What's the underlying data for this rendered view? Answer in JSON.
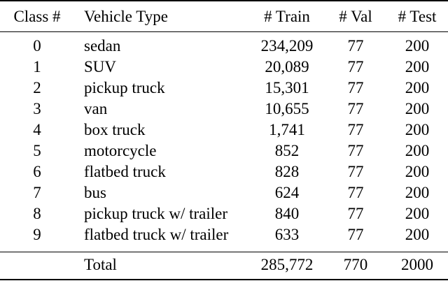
{
  "headers": {
    "class": "Class #",
    "type": "Vehicle Type",
    "train": "# Train",
    "val": "# Val",
    "test": "# Test"
  },
  "rows": [
    {
      "class": "0",
      "type": "sedan",
      "train": "234,209",
      "val": "77",
      "test": "200"
    },
    {
      "class": "1",
      "type": "SUV",
      "train": "20,089",
      "val": "77",
      "test": "200"
    },
    {
      "class": "2",
      "type": "pickup truck",
      "train": "15,301",
      "val": "77",
      "test": "200"
    },
    {
      "class": "3",
      "type": "van",
      "train": "10,655",
      "val": "77",
      "test": "200"
    },
    {
      "class": "4",
      "type": "box truck",
      "train": "1,741",
      "val": "77",
      "test": "200"
    },
    {
      "class": "5",
      "type": "motorcycle",
      "train": "852",
      "val": "77",
      "test": "200"
    },
    {
      "class": "6",
      "type": "flatbed truck",
      "train": "828",
      "val": "77",
      "test": "200"
    },
    {
      "class": "7",
      "type": "bus",
      "train": "624",
      "val": "77",
      "test": "200"
    },
    {
      "class": "8",
      "type": "pickup truck w/ trailer",
      "train": "840",
      "val": "77",
      "test": "200"
    },
    {
      "class": "9",
      "type": "flatbed truck w/ trailer",
      "train": "633",
      "val": "77",
      "test": "200"
    }
  ],
  "total": {
    "class": "",
    "type": "Total",
    "train": "285,772",
    "val": "770",
    "test": "2000"
  }
}
